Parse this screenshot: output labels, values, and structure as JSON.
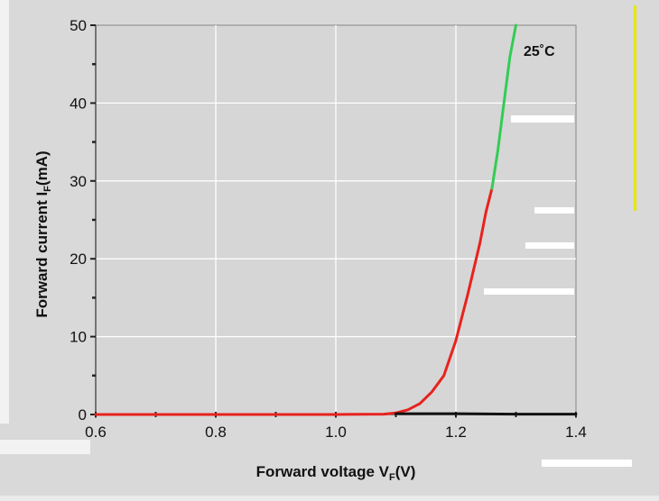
{
  "chart_data": {
    "type": "line",
    "xlabel": "Forward voltage V",
    "xlabel_sub": "F",
    "xlabel_unit": "(V)",
    "ylabel": "Forward current I",
    "ylabel_sub": "F",
    "ylabel_unit": "(mA)",
    "xlim": [
      0.6,
      1.4
    ],
    "ylim": [
      0,
      50
    ],
    "xticks": [
      "0.6",
      "0.8",
      "1.0",
      "1.2",
      "1.4"
    ],
    "yticks": [
      "0",
      "10",
      "20",
      "30",
      "40",
      "50"
    ],
    "grid": true,
    "annotation": "25˚C",
    "series": [
      {
        "color": "#e8221e",
        "x": [
          0.6,
          0.8,
          1.0,
          1.08,
          1.1,
          1.12,
          1.14,
          1.16,
          1.18,
          1.2,
          1.22,
          1.24,
          1.25,
          1.26
        ],
        "y": [
          0,
          0,
          0,
          0.05,
          0.2,
          0.6,
          1.4,
          2.9,
          5.0,
          9.5,
          15.5,
          22,
          26,
          29
        ]
      },
      {
        "color": "#33cc55",
        "x": [
          1.26,
          1.27,
          1.28,
          1.29,
          1.3
        ],
        "y": [
          29,
          34,
          40,
          46,
          50
        ]
      },
      {
        "color": "#111111",
        "x": [
          1.1,
          1.2,
          1.3,
          1.4
        ],
        "y": [
          0.1,
          0.1,
          0.05,
          0.05
        ]
      }
    ]
  }
}
